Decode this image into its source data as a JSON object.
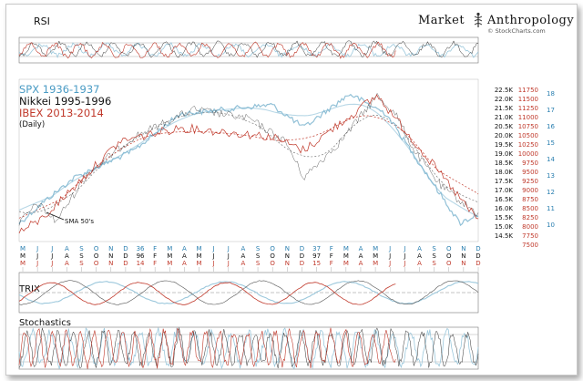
{
  "brand": {
    "name": "Market Anthropology",
    "part1": "Market",
    "part2": "Anthropology",
    "source": "© StockCharts.com"
  },
  "chart_data": {
    "type": "line",
    "panels": [
      "RSI",
      "price",
      "TRIX",
      "Stochastics"
    ],
    "panel_labels": {
      "rsi": "RSI",
      "trix": "TRIX",
      "stochastics": "Stochastics"
    },
    "series": [
      {
        "name": "SPX 1936-1937",
        "color": "#6aaac8"
      },
      {
        "name": "Nikkei 1995-1996",
        "color": "#111111"
      },
      {
        "name": "IBEX 2013-2014",
        "color": "#c0392b"
      }
    ],
    "subtitle": "(Daily)",
    "annotations": [
      "SMA 50's"
    ],
    "month_axis": {
      "row1": [
        "M",
        "J",
        "J",
        "A",
        "S",
        "O",
        "N",
        "D",
        "36",
        "F",
        "M",
        "A",
        "M",
        "J",
        "J",
        "A",
        "S",
        "O",
        "N",
        "D",
        "37",
        "F",
        "M",
        "A",
        "M",
        "J",
        "J",
        "A",
        "S",
        "O",
        "N",
        "D"
      ],
      "row2": [
        "M",
        "J",
        "J",
        "A",
        "S",
        "O",
        "N",
        "D",
        "96",
        "F",
        "M",
        "A",
        "M",
        "J",
        "J",
        "A",
        "S",
        "O",
        "N",
        "D",
        "97",
        "F",
        "M",
        "A",
        "M",
        "J",
        "J",
        "A",
        "S",
        "O",
        "N",
        "D"
      ],
      "row3": [
        "M",
        "J",
        "J",
        "A",
        "S",
        "O",
        "N",
        "D",
        "14",
        "F",
        "M",
        "A",
        "M",
        "J",
        "J",
        "A",
        "S",
        "O",
        "N",
        "D",
        "15",
        "F",
        "M",
        "A",
        "M",
        "J",
        "J",
        "A",
        "S",
        "O",
        "N",
        "D"
      ],
      "row_colors": [
        "#2a7fb0",
        "#111111",
        "#c0392b"
      ]
    },
    "y_axes": {
      "nikkei": [
        "22.5K",
        "22.0K",
        "21.5K",
        "21.0K",
        "20.5K",
        "20.0K",
        "19.5K",
        "19.0K",
        "18.5K",
        "18.0K",
        "17.5K",
        "17.0K",
        "16.5K",
        "16.0K",
        "15.5K",
        "15.0K",
        "14.5K"
      ],
      "ibex": [
        "11750",
        "11500",
        "11250",
        "11000",
        "10750",
        "10500",
        "10250",
        "10000",
        "9750",
        "9500",
        "9250",
        "9000",
        "8750",
        "8500",
        "8250",
        "8000",
        "7750",
        "7500"
      ],
      "spx": [
        "18",
        "17",
        "16",
        "15",
        "14",
        "13",
        "12",
        "11",
        "10"
      ]
    }
  }
}
